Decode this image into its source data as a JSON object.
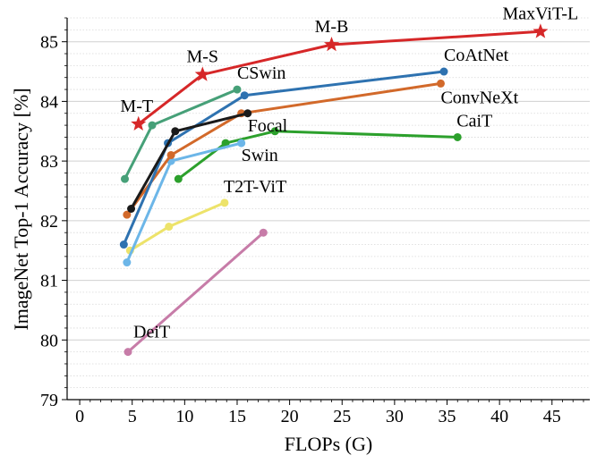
{
  "chart_data": {
    "type": "line",
    "xlabel": "FLOPs (G)",
    "ylabel": "ImageNet Top-1 Accuracy [%]",
    "xlim": [
      -1.2,
      48.6
    ],
    "ylim": [
      79,
      85.4
    ],
    "xticks": [
      0,
      5,
      10,
      15,
      20,
      25,
      30,
      35,
      40,
      45
    ],
    "yticks": [
      79,
      80,
      81,
      82,
      83,
      84,
      85
    ],
    "grid": "horizontal, major solid and minor dotted",
    "series": [
      {
        "name": "DeiT",
        "color": "#c77ca8",
        "marker": "circle",
        "x": [
          4.6,
          17.5
        ],
        "y": [
          79.8,
          81.8
        ]
      },
      {
        "name": "T2T-ViT",
        "color": "#ede36a",
        "marker": "circle",
        "x": [
          4.8,
          8.5,
          13.8
        ],
        "y": [
          81.5,
          81.9,
          82.3
        ]
      },
      {
        "name": "CaiT",
        "color": "#2ca02c",
        "marker": "circle",
        "x": [
          9.4,
          13.9,
          18.6,
          36.0
        ],
        "y": [
          82.7,
          83.3,
          83.5,
          83.4
        ]
      },
      {
        "name": "Swin",
        "color": "#6cb6e8",
        "marker": "circle",
        "x": [
          4.5,
          8.7,
          15.4
        ],
        "y": [
          81.3,
          83.0,
          83.3
        ]
      },
      {
        "name": "ConvNeXt",
        "color": "#d2692a",
        "marker": "circle",
        "x": [
          4.5,
          8.7,
          15.4,
          34.4
        ],
        "y": [
          82.1,
          83.1,
          83.8,
          84.3
        ]
      },
      {
        "name": "CoAtNet",
        "color": "#2e72b0",
        "marker": "circle",
        "x": [
          4.2,
          8.4,
          15.7,
          34.7
        ],
        "y": [
          81.6,
          83.3,
          84.1,
          84.5
        ]
      },
      {
        "name": "Focal",
        "color": "#1a1a1a",
        "marker": "circle",
        "x": [
          4.9,
          9.1,
          16.0
        ],
        "y": [
          82.2,
          83.5,
          83.8
        ]
      },
      {
        "name": "CSwin",
        "color": "#46a078",
        "marker": "circle",
        "x": [
          4.3,
          6.9,
          15.0
        ],
        "y": [
          82.7,
          83.6,
          84.2
        ]
      },
      {
        "name": "MaxViT",
        "color": "#d62728",
        "marker": "star",
        "x": [
          5.6,
          11.7,
          24.0,
          43.9
        ],
        "y": [
          83.62,
          84.45,
          84.95,
          85.17
        ],
        "point_labels": [
          "M-T",
          "M-S",
          "M-B",
          "MaxViT-L"
        ]
      }
    ],
    "series_labels": [
      "DeiT",
      "T2T-ViT",
      "CaiT",
      "Swin",
      "ConvNeXt",
      "CoAtNet",
      "Focal",
      "CSwin"
    ]
  }
}
